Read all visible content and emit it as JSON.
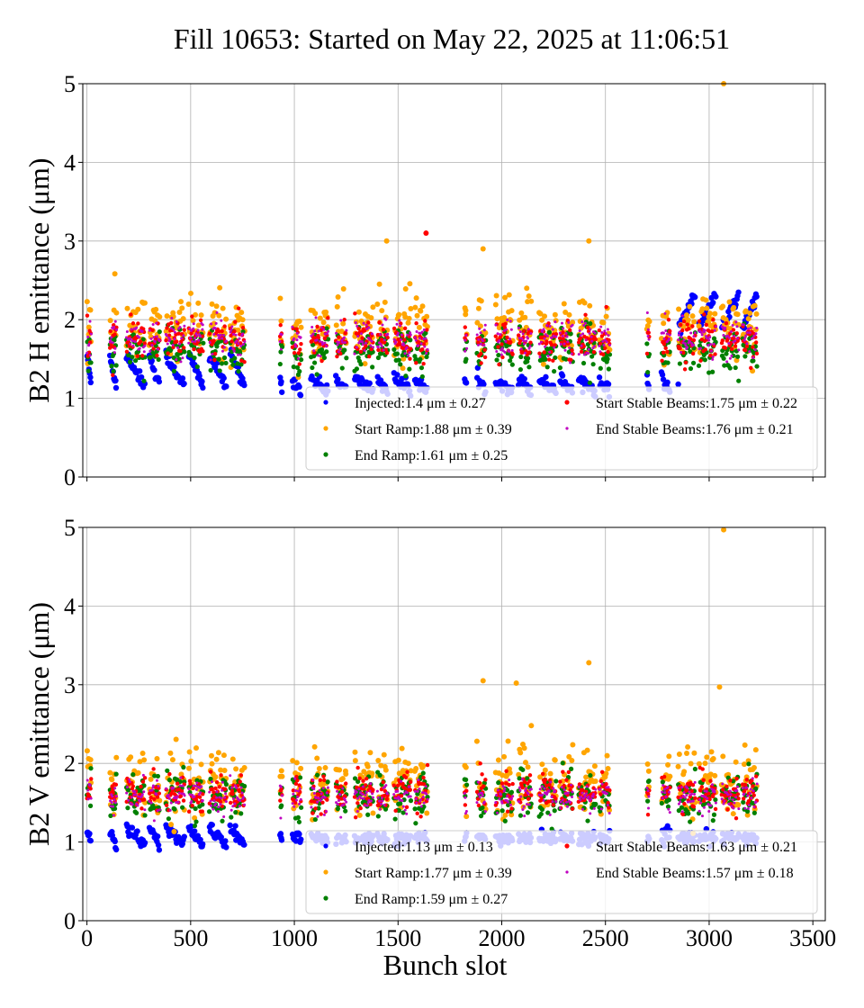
{
  "title": "Fill 10653: Started on May 22, 2025 at 11:06:51",
  "chart_data": [
    {
      "type": "scatter",
      "ylabel": "B2 H emittance (μm)",
      "xlabel": "",
      "xlim": [
        -20,
        3560
      ],
      "ylim": [
        0,
        5
      ],
      "xticks": [
        0,
        500,
        1000,
        1500,
        2000,
        2500,
        3000,
        3500
      ],
      "yticks": [
        0,
        1,
        2,
        3,
        4,
        5
      ],
      "grid": true,
      "legend_position": "lower-right",
      "legend": [
        {
          "label": "Injected:1.4 μm ± 0.27",
          "color": "#0000ff"
        },
        {
          "label": "Start Ramp:1.88 μm ± 0.39",
          "color": "#ffa500"
        },
        {
          "label": "End Ramp:1.61 μm ± 0.25",
          "color": "#008000"
        },
        {
          "label": "Start Stable Beams:1.75 μm ± 0.22",
          "color": "#ff0000"
        },
        {
          "label": "End Stable Beams:1.76 μm ± 0.21",
          "color": "#c000c0"
        }
      ],
      "series": [
        {
          "name": "Injected",
          "color": "#0000ff",
          "mean": 1.4,
          "std": 0.27
        },
        {
          "name": "Start Ramp",
          "color": "#ffa500",
          "mean": 1.88,
          "std": 0.39
        },
        {
          "name": "End Ramp",
          "color": "#008000",
          "mean": 1.61,
          "std": 0.25
        },
        {
          "name": "Start Stable Beams",
          "color": "#ff0000",
          "mean": 1.75,
          "std": 0.22
        },
        {
          "name": "End Stable Beams",
          "color": "#c000c0",
          "mean": 1.76,
          "std": 0.21
        }
      ],
      "notable_points": [
        {
          "series": "Start Ramp",
          "x": 3070,
          "y": 5.0
        },
        {
          "series": "Start Ramp",
          "x": 1445,
          "y": 3.0
        },
        {
          "series": "Start Stable Beams",
          "x": 1635,
          "y": 3.1
        },
        {
          "series": "Start Ramp",
          "x": 2420,
          "y": 3.0
        },
        {
          "series": "Start Ramp",
          "x": 1910,
          "y": 2.9
        }
      ]
    },
    {
      "type": "scatter",
      "ylabel": "B2 V emittance (μm)",
      "xlabel": "Bunch slot",
      "xlim": [
        -20,
        3560
      ],
      "ylim": [
        0,
        5
      ],
      "xticks": [
        0,
        500,
        1000,
        1500,
        2000,
        2500,
        3000,
        3500
      ],
      "yticks": [
        0,
        1,
        2,
        3,
        4,
        5
      ],
      "grid": true,
      "legend_position": "lower-right",
      "legend": [
        {
          "label": "Injected:1.13 μm ± 0.13",
          "color": "#0000ff"
        },
        {
          "label": "Start Ramp:1.77 μm ± 0.39",
          "color": "#ffa500"
        },
        {
          "label": "End Ramp:1.59 μm ± 0.27",
          "color": "#008000"
        },
        {
          "label": "Start Stable Beams:1.63 μm ± 0.21",
          "color": "#ff0000"
        },
        {
          "label": "End Stable Beams:1.57 μm ± 0.18",
          "color": "#c000c0"
        }
      ],
      "series": [
        {
          "name": "Injected",
          "color": "#0000ff",
          "mean": 1.13,
          "std": 0.13
        },
        {
          "name": "Start Ramp",
          "color": "#ffa500",
          "mean": 1.77,
          "std": 0.39
        },
        {
          "name": "End Ramp",
          "color": "#008000",
          "mean": 1.59,
          "std": 0.27
        },
        {
          "name": "Start Stable Beams",
          "color": "#ff0000",
          "mean": 1.63,
          "std": 0.21
        },
        {
          "name": "End Stable Beams",
          "color": "#c000c0",
          "mean": 1.57,
          "std": 0.18
        }
      ],
      "notable_points": [
        {
          "series": "Start Ramp",
          "x": 3070,
          "y": 4.97
        },
        {
          "series": "Start Ramp",
          "x": 2420,
          "y": 3.28
        },
        {
          "series": "Start Ramp",
          "x": 1910,
          "y": 3.05
        },
        {
          "series": "Start Ramp",
          "x": 3050,
          "y": 2.97
        },
        {
          "series": "Start Ramp",
          "x": 2070,
          "y": 3.02
        }
      ]
    }
  ],
  "bunch_trains": [
    [
      0,
      20
    ],
    [
      110,
      140
    ],
    [
      190,
      280
    ],
    [
      300,
      350
    ],
    [
      380,
      470
    ],
    [
      490,
      560
    ],
    [
      590,
      670
    ],
    [
      690,
      760
    ],
    [
      930,
      940
    ],
    [
      990,
      1030
    ],
    [
      1080,
      1160
    ],
    [
      1200,
      1250
    ],
    [
      1290,
      1380
    ],
    [
      1400,
      1450
    ],
    [
      1480,
      1560
    ],
    [
      1580,
      1640
    ],
    [
      1820,
      1830
    ],
    [
      1880,
      1920
    ],
    [
      1970,
      2050
    ],
    [
      2080,
      2140
    ],
    [
      2180,
      2260
    ],
    [
      2280,
      2340
    ],
    [
      2370,
      2450
    ],
    [
      2470,
      2520
    ],
    [
      2700,
      2710
    ],
    [
      2770,
      2810
    ],
    [
      2850,
      2930
    ],
    [
      2950,
      3030
    ],
    [
      3060,
      3140
    ],
    [
      3160,
      3230
    ]
  ]
}
